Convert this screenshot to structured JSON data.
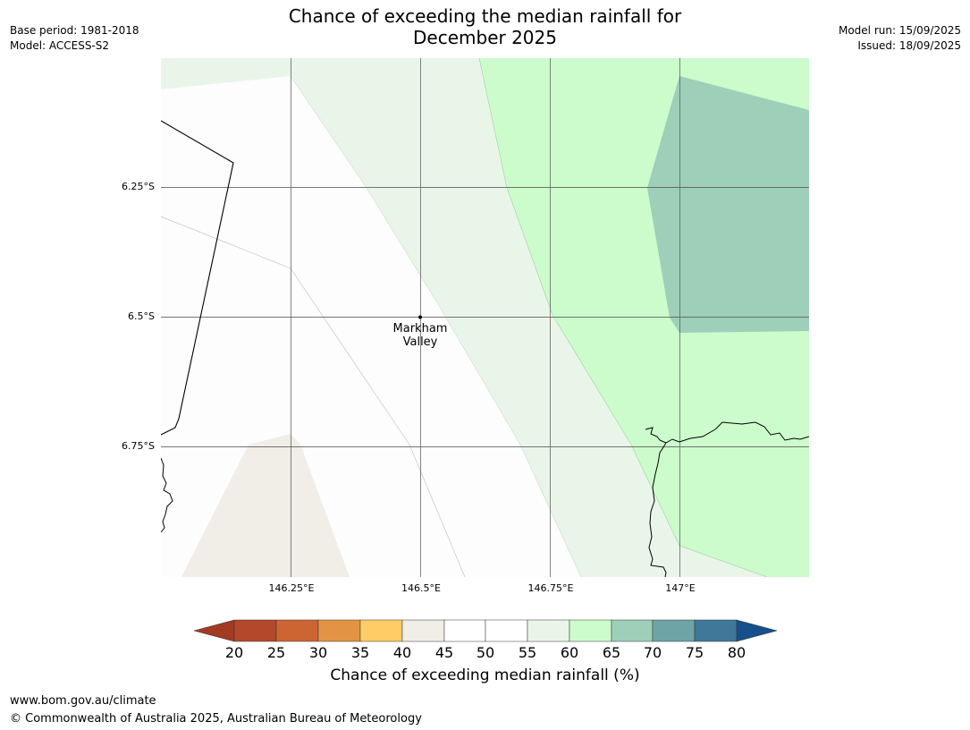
{
  "header": {
    "title_line1": "Chance of exceeding the median rainfall for",
    "title_line2": "December 2025",
    "base_period": "Base period: 1981-2018",
    "model": "Model: ACCESS-S2",
    "model_run": "Model run: 15/09/2025",
    "issued": "Issued: 18/09/2025"
  },
  "map": {
    "lat_labels": [
      "6.25°S",
      "6.5°S",
      "6.75°S"
    ],
    "lon_labels": [
      "146.25°E",
      "146.5°E",
      "146.75°E",
      "147°E"
    ],
    "town": {
      "name_line1": "Markham",
      "name_line2": "Valley"
    },
    "colors": {
      "band_40_45": "#f1ede7",
      "band_50_55": "#fdfdfd",
      "band_55_60": "#eaf5ea",
      "band_60_65": "#ccfccc",
      "band_65_70": "#9dcfb9"
    }
  },
  "colorbar": {
    "ticks": [
      "20",
      "25",
      "30",
      "35",
      "40",
      "45",
      "50",
      "55",
      "60",
      "65",
      "70",
      "75",
      "80"
    ],
    "colors": [
      "#a33a22",
      "#b3492a",
      "#cd6532",
      "#e29444",
      "#ffcc66",
      "#f1ede7",
      "#ffffff",
      "#ffffff",
      "#eaf5ea",
      "#ccfccc",
      "#9dcfb9",
      "#6fa4a6",
      "#3f7898",
      "#16508a"
    ],
    "label": "Chance of exceeding median rainfall (%)"
  },
  "footer": {
    "url": "www.bom.gov.au/climate",
    "copyright": "© Commonwealth of Australia 2025, Australian Bureau of Meteorology"
  }
}
